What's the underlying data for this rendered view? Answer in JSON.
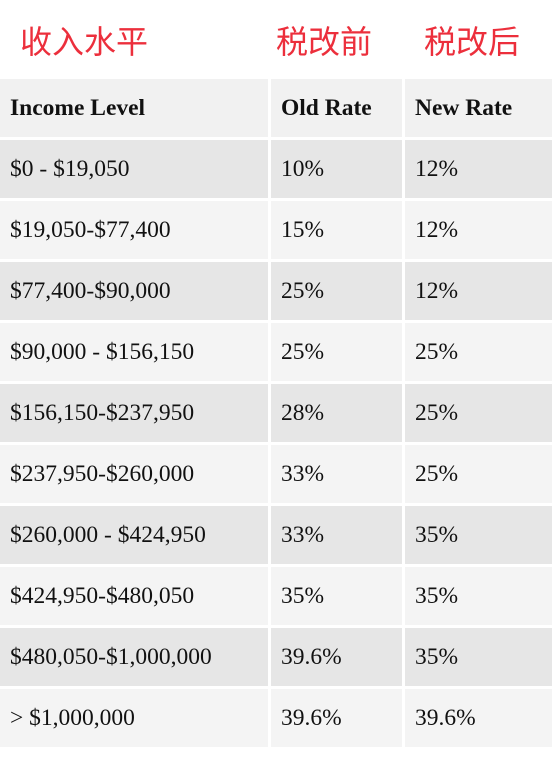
{
  "annotations": {
    "income_level": "收入水平",
    "before_tax_change": "税改前",
    "after_tax_change": "税改后"
  },
  "table": {
    "headers": [
      "Income Level",
      "Old Rate",
      "New Rate"
    ],
    "rows": [
      [
        " $0 - $19,050",
        "10%",
        "12%"
      ],
      [
        "$19,050-$77,400",
        "15%",
        "12%"
      ],
      [
        "$77,400-$90,000",
        "25%",
        "12%"
      ],
      [
        "$90,000 - $156,150",
        "25%",
        "25%"
      ],
      [
        "$156,150-$237,950",
        "28%",
        "25%"
      ],
      [
        "$237,950-$260,000",
        "33%",
        "25%"
      ],
      [
        "$260,000 - $424,950",
        "33%",
        "35%"
      ],
      [
        "$424,950-$480,050",
        "35%",
        "35%"
      ],
      [
        "$480,050-$1,000,000",
        "39.6%",
        "35%"
      ],
      [
        "> $1,000,000",
        "39.6%",
        "39.6%"
      ]
    ]
  },
  "colors": {
    "annotation_red": "#ec2f3c",
    "header_bg": "#f1f1f1",
    "row_dark": "#e6e6e6",
    "row_light": "#f4f4f4"
  }
}
